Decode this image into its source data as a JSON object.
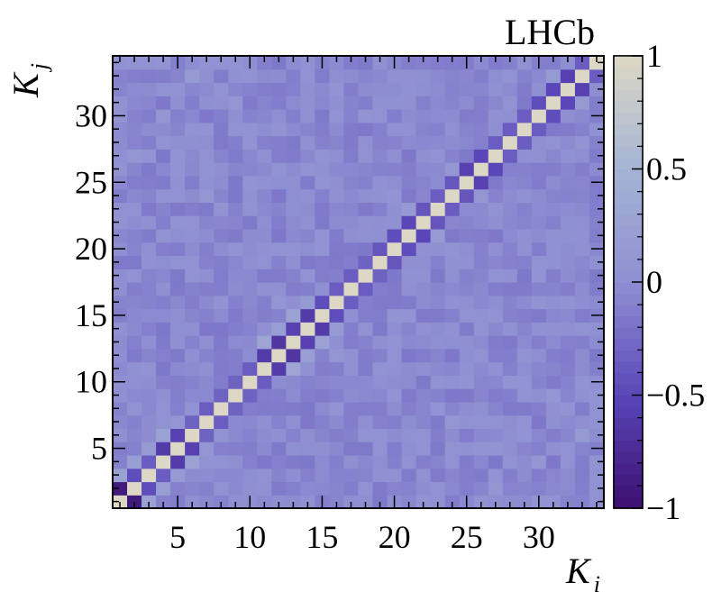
{
  "chart_data": {
    "type": "heatmap",
    "title": "",
    "experiment_label": "LHCb",
    "xlabel": {
      "base": "K",
      "sub": "i"
    },
    "ylabel": {
      "base": "K",
      "sub": "j"
    },
    "n": 34,
    "xlim": [
      0.5,
      34.5
    ],
    "ylim": [
      0.5,
      34.5
    ],
    "x_ticks": [
      5,
      10,
      15,
      20,
      25,
      30
    ],
    "y_ticks": [
      5,
      10,
      15,
      20,
      25,
      30
    ],
    "zlim": [
      -1,
      1
    ],
    "colorbar_ticks": [
      1,
      0.5,
      0,
      -0.5,
      -1
    ],
    "colorbar_tick_labels": [
      "1",
      "0.5",
      "0",
      "−0.5",
      "−1"
    ],
    "colorbar_stops": [
      "#3b0f70",
      "#5a46b8",
      "#8f8fd2",
      "#a4b4d4",
      "#ddd8c5"
    ],
    "background_value": -0.05,
    "notable_correlations": [
      [
        1,
        2,
        -0.9
      ],
      [
        1,
        3,
        0.25
      ],
      [
        2,
        3,
        -0.45
      ],
      [
        3,
        4,
        -0.35
      ],
      [
        2,
        4,
        0.2
      ],
      [
        4,
        5,
        -0.6
      ],
      [
        5,
        6,
        -0.55
      ],
      [
        4,
        6,
        0.25
      ],
      [
        3,
        5,
        0.15
      ],
      [
        5,
        7,
        0.1
      ],
      [
        6,
        7,
        -0.3
      ],
      [
        7,
        8,
        -0.35
      ],
      [
        8,
        9,
        -0.3
      ],
      [
        9,
        10,
        -0.3
      ],
      [
        10,
        11,
        -0.35
      ],
      [
        11,
        12,
        -0.6
      ],
      [
        12,
        13,
        -0.65
      ],
      [
        11,
        13,
        0.3
      ],
      [
        13,
        14,
        -0.55
      ],
      [
        14,
        15,
        -0.6
      ],
      [
        12,
        14,
        0.2
      ],
      [
        13,
        15,
        0.25
      ],
      [
        15,
        16,
        -0.45
      ],
      [
        14,
        16,
        0.15
      ],
      [
        12,
        16,
        0.1
      ],
      [
        16,
        17,
        -0.35
      ],
      [
        17,
        18,
        -0.35
      ],
      [
        18,
        19,
        -0.3
      ],
      [
        19,
        20,
        -0.4
      ],
      [
        20,
        21,
        -0.45
      ],
      [
        21,
        22,
        -0.5
      ],
      [
        22,
        23,
        -0.4
      ],
      [
        23,
        24,
        -0.35
      ],
      [
        24,
        25,
        -0.4
      ],
      [
        25,
        26,
        -0.55
      ],
      [
        26,
        27,
        -0.5
      ],
      [
        27,
        28,
        -0.35
      ],
      [
        28,
        29,
        -0.35
      ],
      [
        29,
        30,
        -0.35
      ],
      [
        30,
        31,
        -0.45
      ],
      [
        31,
        32,
        -0.5
      ],
      [
        32,
        33,
        -0.55
      ],
      [
        33,
        34,
        -0.35
      ],
      [
        31,
        33,
        0.15
      ],
      [
        21,
        23,
        0.15
      ],
      [
        24,
        26,
        0.1
      ],
      [
        4,
        30,
        0.1
      ],
      [
        9,
        31,
        0.1
      ],
      [
        7,
        24,
        0.1
      ],
      [
        5,
        18,
        -0.15
      ],
      [
        8,
        28,
        -0.15
      ],
      [
        10,
        22,
        -0.15
      ],
      [
        2,
        27,
        0.1
      ],
      [
        6,
        33,
        0.15
      ]
    ]
  }
}
